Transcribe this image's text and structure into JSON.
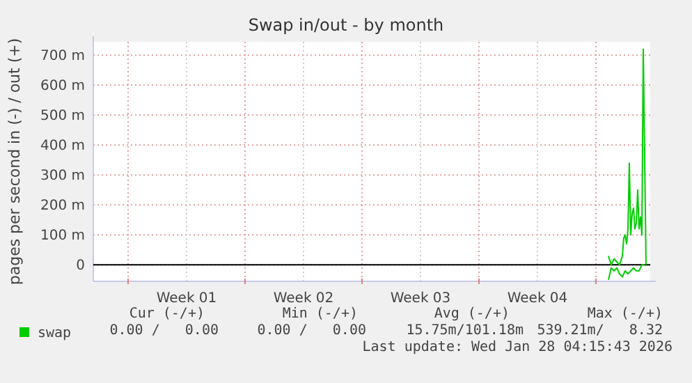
{
  "chart_data": {
    "type": "line",
    "title": "Swap in/out - by month",
    "ylabel": "pages per second in (-) / out (+)",
    "series": [
      {
        "name": "swap",
        "color": "#00cc00",
        "x": [
          "2026-01-25T18:00",
          "2026-01-25T22:00",
          "2026-01-26T02:00",
          "2026-01-26T06:00",
          "2026-01-26T10:00",
          "2026-01-26T14:00",
          "2026-01-26T16:00",
          "2026-01-26T18:00",
          "2026-01-26T20:00",
          "2026-01-26T22:00",
          "2026-01-27T00:00",
          "2026-01-27T02:00",
          "2026-01-27T04:00",
          "2026-01-27T06:00",
          "2026-01-27T08:00",
          "2026-01-27T10:00",
          "2026-01-27T12:00",
          "2026-01-27T14:00",
          "2026-01-27T16:00",
          "2026-01-27T18:00",
          "2026-01-27T20:00",
          "2026-01-27T22:00",
          "2026-01-28T00:00"
        ],
        "values": [
          30,
          0,
          20,
          10,
          0,
          30,
          90,
          100,
          70,
          120,
          340,
          100,
          170,
          190,
          120,
          140,
          250,
          120,
          160,
          100,
          720,
          360,
          0
        ]
      },
      {
        "color": "#00cc00",
        "x": [
          "2026-01-25T18:00",
          "2026-01-25T22:00",
          "2026-01-26T02:00",
          "2026-01-26T06:00",
          "2026-01-26T10:00",
          "2026-01-26T14:00",
          "2026-01-26T18:00",
          "2026-01-26T22:00",
          "2026-01-27T02:00",
          "2026-01-27T06:00",
          "2026-01-27T10:00",
          "2026-01-27T14:00",
          "2026-01-27T18:00",
          "2026-01-27T22:00"
        ],
        "values": [
          -50,
          -10,
          -20,
          -10,
          -30,
          -40,
          -20,
          -30,
          -20,
          -10,
          -20,
          -20,
          0,
          0
        ]
      }
    ],
    "xlim": [
      "2025-12-25T22:00",
      "2026-01-28T06:00"
    ],
    "xticks": [
      {
        "value": "2025-12-28T00:00",
        "label": null
      },
      {
        "value": "2025-12-31T12:00",
        "label": "Week 01"
      },
      {
        "value": "2026-01-04T00:00",
        "label": null
      },
      {
        "value": "2026-01-07T12:00",
        "label": "Week 02"
      },
      {
        "value": "2026-01-11T00:00",
        "label": null
      },
      {
        "value": "2026-01-14T12:00",
        "label": "Week 03"
      },
      {
        "value": "2026-01-18T00:00",
        "label": null
      },
      {
        "value": "2026-01-21T12:00",
        "label": "Week 04"
      },
      {
        "value": "2026-01-25T00:00",
        "label": null
      }
    ],
    "ylim": [
      -55,
      745
    ],
    "yticks": [
      {
        "value": 0,
        "label": "0"
      },
      {
        "value": 100,
        "label": "100 m"
      },
      {
        "value": 200,
        "label": "200 m"
      },
      {
        "value": 300,
        "label": "300 m"
      },
      {
        "value": 400,
        "label": "400 m"
      },
      {
        "value": 500,
        "label": "500 m"
      },
      {
        "value": 600,
        "label": "600 m"
      },
      {
        "value": 700,
        "label": "700 m"
      }
    ],
    "ref_lines": [
      {
        "axis": "y",
        "value": 0,
        "color": "#000000"
      }
    ],
    "grid": true,
    "legend": "bottom left",
    "annotations": [
      "Cur (-/+)",
      "Min (-/+)",
      "Avg (-/+)",
      "Max (-/+)",
      "0.00 /   0.00",
      "0.00 /   0.00",
      "15.75m/101.18m",
      "539.21m/   8.32",
      "Last update: Wed Jan 28 04:15:43 2026"
    ]
  }
}
